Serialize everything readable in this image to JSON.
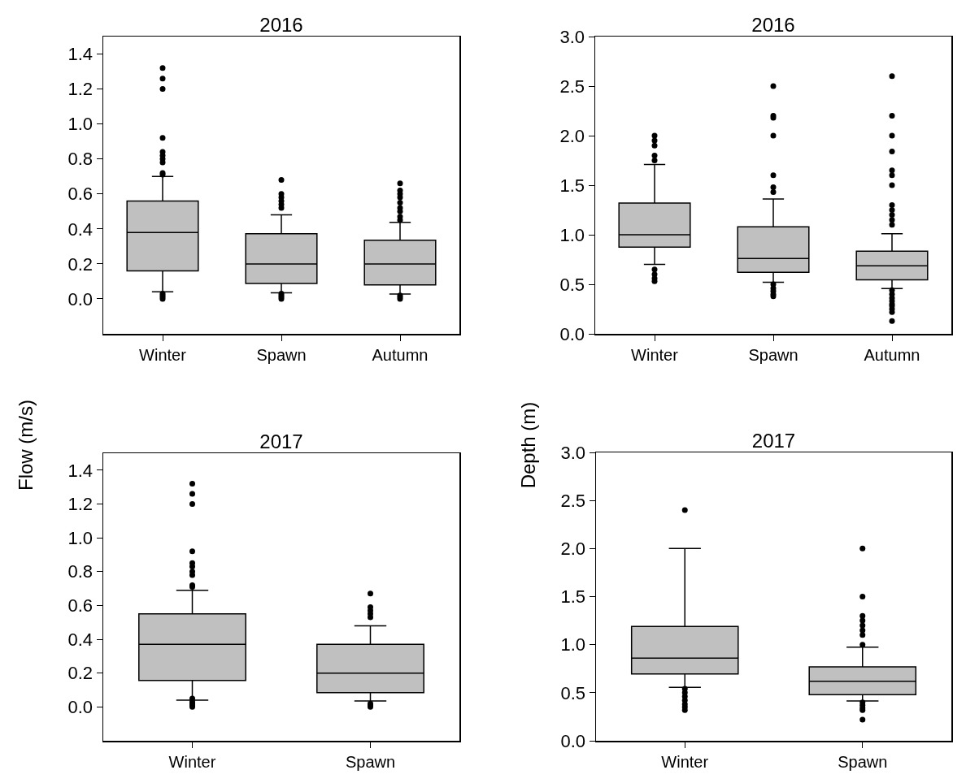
{
  "chart_data": [
    {
      "type": "box",
      "title": "2016",
      "ylabel": "Flow (m/s)",
      "categories": [
        "Winter",
        "Spawn",
        "Autumn"
      ],
      "color": "#c0c0c0",
      "ylim": [
        -0.2,
        1.5
      ],
      "yticks": [
        {
          "value": 0,
          "label": "0.0"
        },
        0.2,
        0.4,
        0.6,
        0.8,
        {
          "value": 1,
          "label": "1.0"
        },
        1.2,
        1.4
      ],
      "boxes": [
        {
          "low": 0.04,
          "q1": 0.16,
          "median": 0.38,
          "q3": 0.56,
          "high": 0.7,
          "outliers": [
            0.0,
            0.01,
            0.02,
            0.03,
            0.71,
            0.72,
            0.78,
            0.8,
            0.82,
            0.84,
            0.92,
            1.2,
            1.26,
            1.32
          ]
        },
        {
          "low": 0.035,
          "q1": 0.088,
          "median": 0.2,
          "q3": 0.372,
          "high": 0.48,
          "outliers": [
            0.0,
            0.01,
            0.02,
            0.03,
            0.52,
            0.54,
            0.56,
            0.58,
            0.6,
            0.68
          ]
        },
        {
          "low": 0.028,
          "q1": 0.08,
          "median": 0.2,
          "q3": 0.335,
          "high": 0.437,
          "outliers": [
            0.0,
            0.01,
            0.02,
            0.45,
            0.47,
            0.5,
            0.52,
            0.55,
            0.58,
            0.6,
            0.62,
            0.66
          ]
        }
      ]
    },
    {
      "type": "box",
      "title": "2016",
      "ylabel": "Depth (m)",
      "categories": [
        "Winter",
        "Spawn",
        "Autumn"
      ],
      "color": "#c0c0c0",
      "ylim": [
        0,
        3
      ],
      "yticks": [
        {
          "value": 0,
          "label": "0.0"
        },
        0.5,
        {
          "value": 1,
          "label": "1.0"
        },
        1.5,
        {
          "value": 2,
          "label": "2.0"
        },
        2.5,
        {
          "value": 3,
          "label": "3.0"
        }
      ],
      "boxes": [
        {
          "low": 0.7,
          "q1": 0.875,
          "median": 1.0,
          "q3": 1.32,
          "high": 1.71,
          "outliers": [
            0.53,
            0.56,
            0.6,
            0.65,
            1.75,
            1.8,
            1.9,
            1.95,
            2.0
          ]
        },
        {
          "low": 0.52,
          "q1": 0.62,
          "median": 0.76,
          "q3": 1.08,
          "high": 1.36,
          "outliers": [
            0.38,
            0.4,
            0.43,
            0.46,
            0.5,
            1.43,
            1.48,
            1.6,
            2.0,
            2.18,
            2.2,
            2.5
          ]
        },
        {
          "low": 0.457,
          "q1": 0.545,
          "median": 0.686,
          "q3": 0.835,
          "high": 1.01,
          "outliers": [
            0.13,
            0.22,
            0.25,
            0.28,
            0.3,
            0.33,
            0.36,
            0.4,
            0.44,
            1.1,
            1.15,
            1.2,
            1.25,
            1.3,
            1.5,
            1.6,
            1.65,
            1.84,
            2.0,
            2.2,
            2.6
          ]
        }
      ]
    },
    {
      "type": "box",
      "title": "2017",
      "categories": [
        "Winter",
        "Spawn"
      ],
      "color": "#c0c0c0",
      "ylim": [
        -0.2,
        1.5
      ],
      "yticks": [
        {
          "value": 0,
          "label": "0.0"
        },
        0.2,
        0.4,
        0.6,
        0.8,
        {
          "value": 1,
          "label": "1.0"
        },
        1.2,
        1.4
      ],
      "boxes": [
        {
          "low": 0.04,
          "q1": 0.157,
          "median": 0.37,
          "q3": 0.55,
          "high": 0.69,
          "outliers": [
            0.0,
            0.01,
            0.02,
            0.03,
            0.05,
            0.71,
            0.72,
            0.78,
            0.8,
            0.83,
            0.85,
            0.92,
            1.2,
            1.26,
            1.32
          ]
        },
        {
          "low": 0.035,
          "q1": 0.085,
          "median": 0.2,
          "q3": 0.37,
          "high": 0.48,
          "outliers": [
            0.0,
            0.01,
            0.02,
            0.53,
            0.55,
            0.57,
            0.59,
            0.67
          ]
        }
      ]
    },
    {
      "type": "box",
      "title": "2017",
      "categories": [
        "Winter",
        "Spawn"
      ],
      "color": "#c0c0c0",
      "ylim": [
        0,
        3
      ],
      "yticks": [
        {
          "value": 0,
          "label": "0.0"
        },
        0.5,
        {
          "value": 1,
          "label": "1.0"
        },
        1.5,
        {
          "value": 2,
          "label": "2.0"
        },
        2.5,
        {
          "value": 3,
          "label": "3.0"
        }
      ],
      "boxes": [
        {
          "low": 0.556,
          "q1": 0.695,
          "median": 0.86,
          "q3": 1.19,
          "high": 2.0,
          "outliers": [
            0.32,
            0.35,
            0.38,
            0.42,
            0.46,
            0.5,
            0.54,
            2.4
          ]
        },
        {
          "low": 0.415,
          "q1": 0.48,
          "median": 0.62,
          "q3": 0.77,
          "high": 0.975,
          "outliers": [
            0.22,
            0.32,
            0.34,
            0.37,
            0.4,
            1.0,
            1.1,
            1.15,
            1.2,
            1.25,
            1.3,
            1.5,
            2.0
          ]
        }
      ]
    }
  ]
}
